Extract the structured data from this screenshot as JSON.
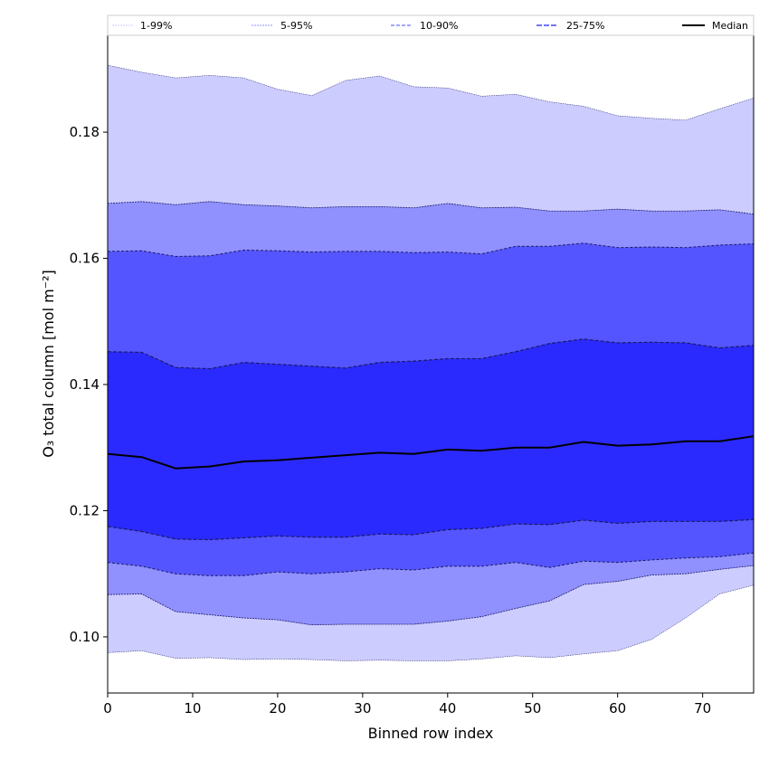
{
  "chart_data": {
    "type": "area",
    "xlabel": "Binned row index",
    "ylabel": "O₃ total column [mol m⁻²]",
    "xlim": [
      0,
      76
    ],
    "ylim": [
      0.0911,
      0.1955
    ],
    "xticks": [
      "0",
      "10",
      "20",
      "30",
      "40",
      "50",
      "60",
      "70"
    ],
    "xtick_values": [
      0,
      10,
      20,
      30,
      40,
      50,
      60,
      70
    ],
    "yticks": [
      "0.10",
      "0.12",
      "0.14",
      "0.16",
      "0.18"
    ],
    "ytick_values": [
      0.1,
      0.12,
      0.14,
      0.16,
      0.18
    ],
    "legend_position": "top",
    "legend": [
      "1-99%",
      "5-95%",
      "10-90%",
      "25-75%",
      "Median"
    ],
    "colors": {
      "b1_99": "#ccccff",
      "b5_95": "#9090ff",
      "b10_90": "#5555ff",
      "b25_75": "#2a2aff",
      "median": "#000000",
      "edge": "#1a1a66"
    },
    "x": [
      0,
      4,
      8,
      12,
      16,
      20,
      24,
      28,
      32,
      36,
      40,
      44,
      48,
      52,
      56,
      60,
      64,
      68,
      72,
      76
    ],
    "series": {
      "p1": [
        0.0975,
        0.0978,
        0.0966,
        0.0967,
        0.0964,
        0.0965,
        0.0964,
        0.0962,
        0.0963,
        0.0962,
        0.0962,
        0.0965,
        0.097,
        0.0967,
        0.0973,
        0.0978,
        0.0996,
        0.103,
        0.1068,
        0.1082
      ],
      "p5": [
        0.1067,
        0.1068,
        0.104,
        0.1035,
        0.103,
        0.1027,
        0.1019,
        0.102,
        0.102,
        0.102,
        0.1025,
        0.1032,
        0.1045,
        0.1057,
        0.1083,
        0.1088,
        0.1098,
        0.11,
        0.1107,
        0.1113
      ],
      "p10": [
        0.1118,
        0.1112,
        0.11,
        0.1097,
        0.1097,
        0.1103,
        0.11,
        0.1103,
        0.1108,
        0.1106,
        0.1112,
        0.1112,
        0.1118,
        0.111,
        0.112,
        0.1118,
        0.1122,
        0.1125,
        0.1127,
        0.1133
      ],
      "p25": [
        0.1175,
        0.1167,
        0.1155,
        0.1154,
        0.1157,
        0.116,
        0.1158,
        0.1158,
        0.1163,
        0.1162,
        0.117,
        0.1172,
        0.1179,
        0.1178,
        0.1185,
        0.118,
        0.1183,
        0.1183,
        0.1183,
        0.1186
      ],
      "median": [
        0.129,
        0.1285,
        0.1267,
        0.127,
        0.1278,
        0.128,
        0.1284,
        0.1288,
        0.1292,
        0.129,
        0.1297,
        0.1295,
        0.13,
        0.13,
        0.1309,
        0.1303,
        0.1305,
        0.131,
        0.131,
        0.1318
      ],
      "p75": [
        0.1452,
        0.1451,
        0.1427,
        0.1425,
        0.1435,
        0.1432,
        0.1429,
        0.1426,
        0.1435,
        0.1437,
        0.1441,
        0.1441,
        0.1452,
        0.1465,
        0.1472,
        0.1466,
        0.1467,
        0.1466,
        0.1458,
        0.1462
      ],
      "p90": [
        0.1611,
        0.1612,
        0.1603,
        0.1604,
        0.1613,
        0.1612,
        0.161,
        0.1611,
        0.1611,
        0.1609,
        0.161,
        0.1607,
        0.1619,
        0.1619,
        0.1624,
        0.1617,
        0.1618,
        0.1617,
        0.1621,
        0.1623
      ],
      "p95": [
        0.1687,
        0.169,
        0.1685,
        0.169,
        0.1685,
        0.1683,
        0.168,
        0.1682,
        0.1682,
        0.168,
        0.1687,
        0.168,
        0.1681,
        0.1675,
        0.1675,
        0.1678,
        0.1675,
        0.1675,
        0.1677,
        0.167
      ],
      "p99": [
        0.1906,
        0.1895,
        0.1886,
        0.189,
        0.1886,
        0.1868,
        0.1858,
        0.1882,
        0.1889,
        0.1872,
        0.187,
        0.1857,
        0.186,
        0.1848,
        0.1841,
        0.1826,
        0.1822,
        0.1819,
        0.1837,
        0.1854
      ]
    }
  }
}
